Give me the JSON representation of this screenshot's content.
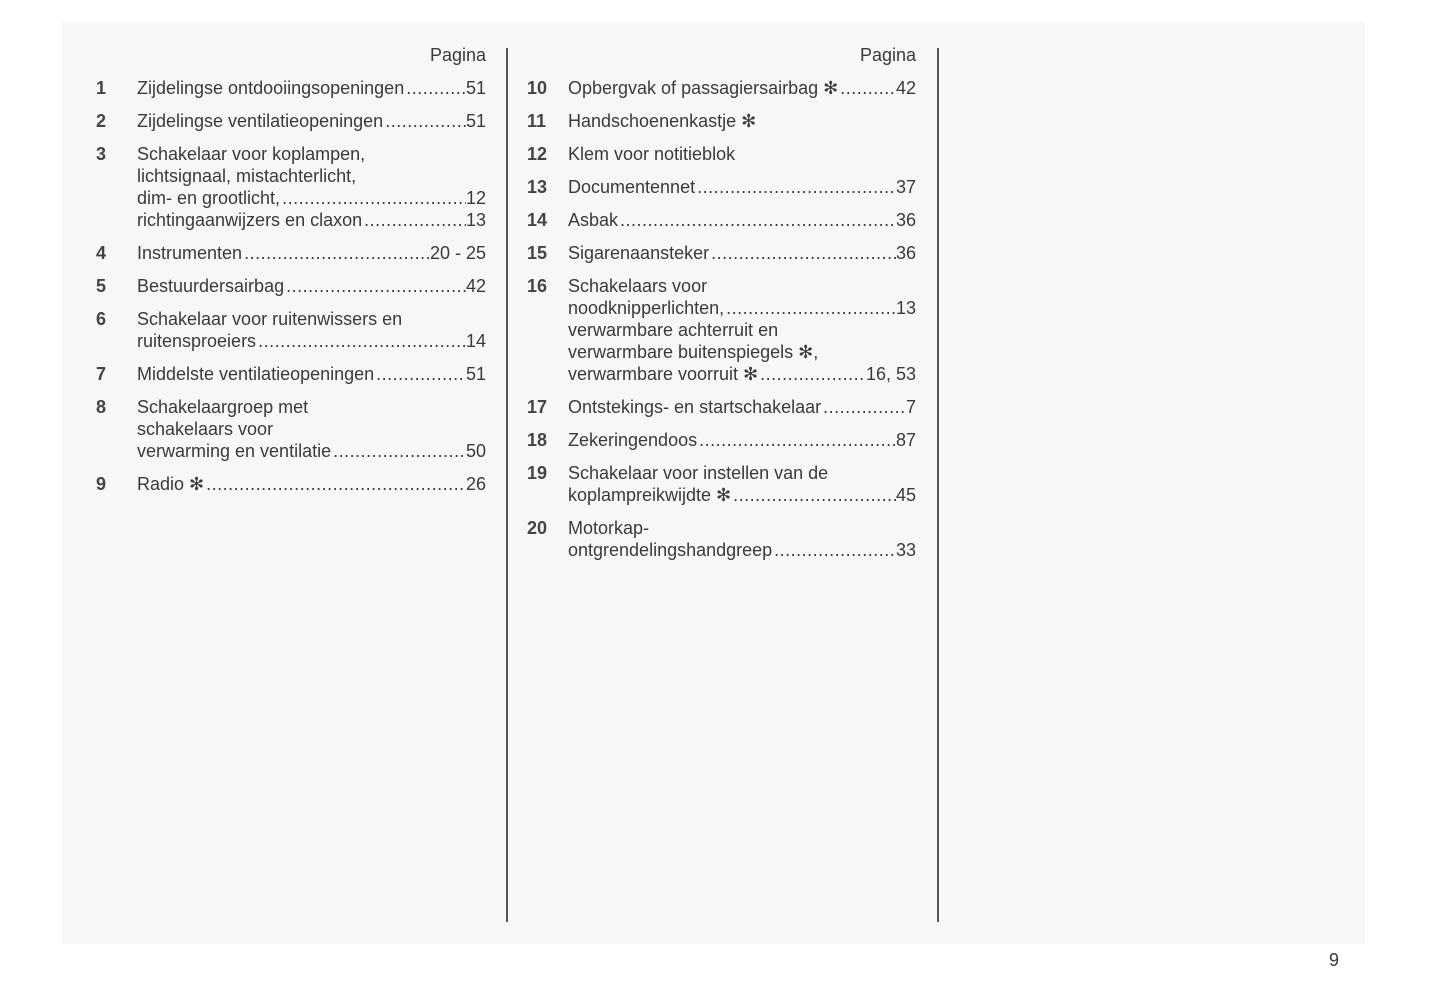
{
  "page_number": "9",
  "columns": [
    {
      "header": "Pagina",
      "entries": [
        {
          "num": "1",
          "lines": [
            {
              "text": "Zijdelingse ontdooiingsopeningen",
              "page": "51"
            }
          ]
        },
        {
          "num": "2",
          "lines": [
            {
              "text": "Zijdelingse ventilatieopeningen",
              "page": "51"
            }
          ]
        },
        {
          "num": "3",
          "lines": [
            {
              "text": "Schakelaar voor koplampen,"
            },
            {
              "text": "lichtsignaal, mistachterlicht,"
            },
            {
              "text": "dim- en grootlicht,",
              "page": "12"
            },
            {
              "text": "richtingaanwijzers en claxon",
              "page": "13"
            }
          ]
        },
        {
          "num": "4",
          "lines": [
            {
              "text": "Instrumenten",
              "page": "20 - 25"
            }
          ]
        },
        {
          "num": "5",
          "lines": [
            {
              "text": "Bestuurdersairbag",
              "page": "42"
            }
          ]
        },
        {
          "num": "6",
          "lines": [
            {
              "text": "Schakelaar voor ruitenwissers en"
            },
            {
              "text": "ruitensproeiers",
              "page": "14"
            }
          ]
        },
        {
          "num": "7",
          "lines": [
            {
              "text": "Middelste ventilatieopeningen",
              "page": "51"
            }
          ]
        },
        {
          "num": "8",
          "lines": [
            {
              "text": "Schakelaargroep met"
            },
            {
              "text": "schakelaars voor"
            },
            {
              "text": "verwarming en ventilatie",
              "page": "50"
            }
          ]
        },
        {
          "num": "9",
          "lines": [
            {
              "text": "Radio ✻",
              "page": "26"
            }
          ]
        }
      ]
    },
    {
      "header": "Pagina",
      "entries": [
        {
          "num": "10",
          "lines": [
            {
              "text": "Opbergvak of passagiersairbag ✻",
              "page": "42"
            }
          ]
        },
        {
          "num": "11",
          "lines": [
            {
              "text": "Handschoenenkastje ✻"
            }
          ]
        },
        {
          "num": "12",
          "lines": [
            {
              "text": "Klem voor notitieblok"
            }
          ]
        },
        {
          "num": "13",
          "lines": [
            {
              "text": "Documentennet",
              "page": "37"
            }
          ]
        },
        {
          "num": "14",
          "lines": [
            {
              "text": "Asbak",
              "page": "36"
            }
          ]
        },
        {
          "num": "15",
          "lines": [
            {
              "text": "Sigarenaansteker",
              "page": "36"
            }
          ]
        },
        {
          "num": "16",
          "lines": [
            {
              "text": "Schakelaars voor"
            },
            {
              "text": "noodknipperlichten,",
              "page": "13"
            },
            {
              "text": "verwarmbare achterruit en"
            },
            {
              "text": "verwarmbare buitenspiegels ✻,"
            },
            {
              "text": "verwarmbare voorruit ✻",
              "page": "16, 53"
            }
          ]
        },
        {
          "num": "17",
          "lines": [
            {
              "text": "Ontstekings- en startschakelaar",
              "page": "7"
            }
          ]
        },
        {
          "num": "18",
          "lines": [
            {
              "text": "Zekeringendoos",
              "page": "87"
            }
          ]
        },
        {
          "num": "19",
          "lines": [
            {
              "text": "Schakelaar voor instellen van de"
            },
            {
              "text": "koplampreikwijdte ✻",
              "page": "45"
            }
          ]
        },
        {
          "num": "20",
          "lines": [
            {
              "text": "Motorkap-"
            },
            {
              "text": "ontgrendelingshandgreep",
              "page": "33"
            }
          ]
        }
      ]
    }
  ]
}
